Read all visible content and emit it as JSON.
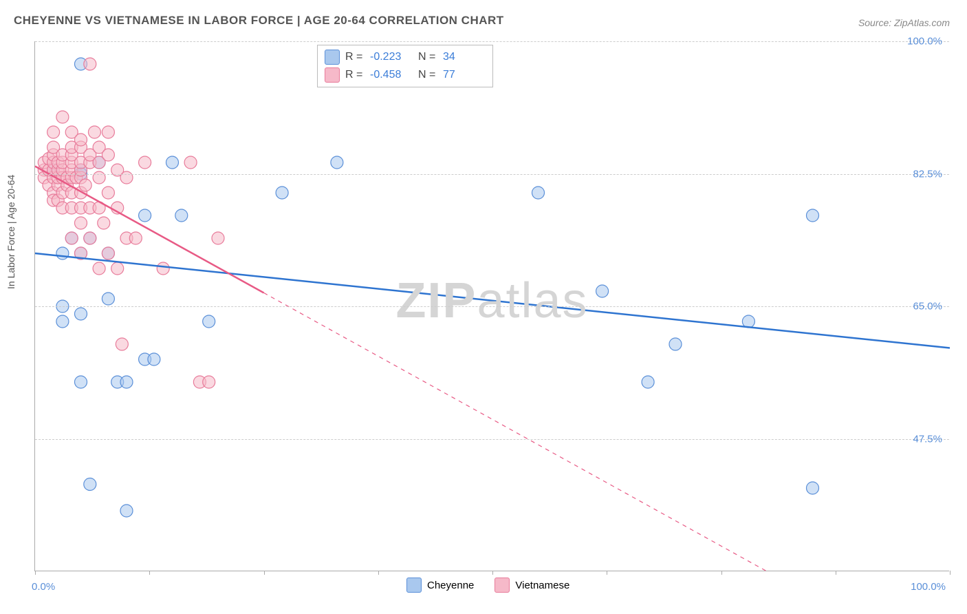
{
  "title": "CHEYENNE VS VIETNAMESE IN LABOR FORCE | AGE 20-64 CORRELATION CHART",
  "source": "Source: ZipAtlas.com",
  "ylabel": "In Labor Force | Age 20-64",
  "watermark_bold": "ZIP",
  "watermark_rest": "atlas",
  "chart": {
    "type": "scatter",
    "plot_bg": "#ffffff",
    "grid_color": "#cccccc",
    "axis_color": "#aaaaaa",
    "tick_label_color": "#5a8fd8",
    "tick_fontsize": 15,
    "title_fontsize": 17,
    "title_color": "#555555",
    "xlim": [
      0,
      100
    ],
    "ylim": [
      30,
      100
    ],
    "y_gridlines": [
      47.5,
      65.0,
      82.5,
      100.0
    ],
    "y_tick_labels": [
      "47.5%",
      "65.0%",
      "82.5%",
      "100.0%"
    ],
    "x_ticks": [
      0,
      12.5,
      25,
      37.5,
      50,
      62.5,
      75,
      87.5,
      100
    ],
    "x_tick_labels": {
      "0": "0.0%",
      "100": "100.0%"
    },
    "marker_radius": 9,
    "marker_opacity": 0.55,
    "marker_stroke_width": 1.2,
    "series": [
      {
        "name": "Cheyenne",
        "color_fill": "#a9c8ee",
        "color_stroke": "#5a8fd8",
        "line_color": "#2e74d0",
        "line_width": 2.5,
        "trend": {
          "x1": 0,
          "y1": 72.0,
          "x2": 100,
          "y2": 59.5,
          "dash_after_x": null
        },
        "points": [
          [
            2,
            83
          ],
          [
            3,
            72
          ],
          [
            3,
            65
          ],
          [
            3,
            63
          ],
          [
            5,
            97
          ],
          [
            5,
            83
          ],
          [
            5,
            82.5
          ],
          [
            5,
            72
          ],
          [
            5,
            64
          ],
          [
            5,
            55
          ],
          [
            6,
            41.5
          ],
          [
            6,
            74
          ],
          [
            7,
            84
          ],
          [
            8,
            72
          ],
          [
            8,
            66
          ],
          [
            9,
            55
          ],
          [
            10,
            55
          ],
          [
            10,
            38
          ],
          [
            12,
            58
          ],
          [
            12,
            77
          ],
          [
            13,
            58
          ],
          [
            15,
            84
          ],
          [
            16,
            77
          ],
          [
            19,
            63
          ],
          [
            27,
            80
          ],
          [
            33,
            84
          ],
          [
            55,
            80
          ],
          [
            62,
            67
          ],
          [
            67,
            55
          ],
          [
            70,
            60
          ],
          [
            78,
            63
          ],
          [
            85,
            77
          ],
          [
            85,
            41
          ],
          [
            4,
            74
          ]
        ]
      },
      {
        "name": "Vietnamese",
        "color_fill": "#f6b9c9",
        "color_stroke": "#e87b9a",
        "line_color": "#e85a85",
        "line_width": 2.5,
        "trend": {
          "x1": 0,
          "y1": 83.5,
          "x2": 80,
          "y2": 30,
          "dash_after_x": 25
        },
        "points": [
          [
            1,
            83
          ],
          [
            1,
            82
          ],
          [
            1,
            84
          ],
          [
            1.5,
            81
          ],
          [
            1.5,
            83
          ],
          [
            1.5,
            84.5
          ],
          [
            2,
            82
          ],
          [
            2,
            83
          ],
          [
            2,
            84
          ],
          [
            2,
            80
          ],
          [
            2,
            79
          ],
          [
            2,
            85
          ],
          [
            2,
            86
          ],
          [
            2,
            88
          ],
          [
            2.5,
            81
          ],
          [
            2.5,
            82
          ],
          [
            2.5,
            83
          ],
          [
            2.5,
            84
          ],
          [
            2.5,
            79
          ],
          [
            3,
            78
          ],
          [
            3,
            80
          ],
          [
            3,
            82
          ],
          [
            3,
            83
          ],
          [
            3,
            84
          ],
          [
            3,
            85
          ],
          [
            3,
            90
          ],
          [
            3.5,
            82
          ],
          [
            3.5,
            81
          ],
          [
            4,
            74
          ],
          [
            4,
            78
          ],
          [
            4,
            80
          ],
          [
            4,
            82
          ],
          [
            4,
            83
          ],
          [
            4,
            84
          ],
          [
            4,
            85
          ],
          [
            4,
            86
          ],
          [
            4,
            88
          ],
          [
            4.5,
            82
          ],
          [
            5,
            72
          ],
          [
            5,
            76
          ],
          [
            5,
            78
          ],
          [
            5,
            80
          ],
          [
            5,
            82
          ],
          [
            5,
            83
          ],
          [
            5,
            84
          ],
          [
            5,
            86
          ],
          [
            5,
            87
          ],
          [
            5.5,
            81
          ],
          [
            6,
            74
          ],
          [
            6,
            78
          ],
          [
            6,
            84
          ],
          [
            6,
            85
          ],
          [
            6,
            97
          ],
          [
            6.5,
            88
          ],
          [
            7,
            70
          ],
          [
            7,
            78
          ],
          [
            7,
            82
          ],
          [
            7,
            84
          ],
          [
            7,
            86
          ],
          [
            7.5,
            76
          ],
          [
            8,
            72
          ],
          [
            8,
            80
          ],
          [
            8,
            85
          ],
          [
            8,
            88
          ],
          [
            9,
            70
          ],
          [
            9,
            78
          ],
          [
            9,
            83
          ],
          [
            9.5,
            60
          ],
          [
            10,
            74
          ],
          [
            10,
            82
          ],
          [
            11,
            74
          ],
          [
            12,
            84
          ],
          [
            14,
            70
          ],
          [
            17,
            84
          ],
          [
            18,
            55
          ],
          [
            20,
            74
          ],
          [
            19,
            55
          ]
        ]
      }
    ],
    "stats_legend": [
      {
        "swatch_fill": "#a9c8ee",
        "swatch_stroke": "#5a8fd8",
        "r": "-0.223",
        "n": "34"
      },
      {
        "swatch_fill": "#f6b9c9",
        "swatch_stroke": "#e87b9a",
        "r": "-0.458",
        "n": "77"
      }
    ],
    "bottom_legend": [
      {
        "swatch_fill": "#a9c8ee",
        "swatch_stroke": "#5a8fd8",
        "label": "Cheyenne"
      },
      {
        "swatch_fill": "#f6b9c9",
        "swatch_stroke": "#e87b9a",
        "label": "Vietnamese"
      }
    ]
  }
}
